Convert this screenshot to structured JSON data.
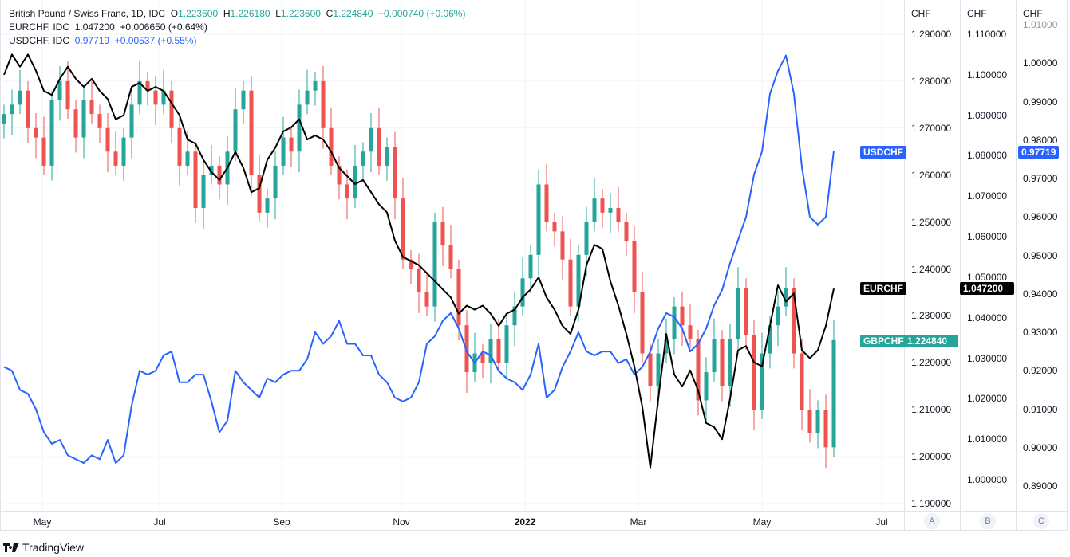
{
  "legend": {
    "main": {
      "title": "British Pound / Swiss Franc, 1D, IDC",
      "o_label": "O",
      "o": "1.223600",
      "h_label": "H",
      "h": "1.226180",
      "l_label": "L",
      "l": "1.223600",
      "c_label": "C",
      "c": "1.224840",
      "change": "+0.000740 (+0.06%)"
    },
    "eurchf": {
      "title": "EURCHF, IDC",
      "value": "1.047200",
      "change": "+0.006650 (+0.64%)"
    },
    "usdchf": {
      "title": "USDCHF, IDC",
      "value": "0.97719",
      "change": "+0.00537 (+0.55%)"
    }
  },
  "axes": {
    "A": {
      "unit": "CHF",
      "button": "A",
      "ticks": [
        "1.290000",
        "1.280000",
        "1.270000",
        "1.260000",
        "1.250000",
        "1.240000",
        "1.230000",
        "1.220000",
        "1.210000",
        "1.200000",
        "1.190000"
      ]
    },
    "B": {
      "unit": "CHF",
      "button": "B",
      "ticks": [
        "1.110000",
        "1.100000",
        "1.090000",
        "1.080000",
        "1.070000",
        "1.060000",
        "1.050000",
        "1.040000",
        "1.030000",
        "1.020000",
        "1.010000",
        "1.000000"
      ]
    },
    "C": {
      "unit": "CHF",
      "button": "C",
      "ticks": [
        "1.01000",
        "1.00000",
        "0.99000",
        "0.98000",
        "0.97000",
        "0.96000",
        "0.95000",
        "0.94000",
        "0.93000",
        "0.92000",
        "0.91000",
        "0.90000",
        "0.89000"
      ]
    }
  },
  "tags": {
    "usdchf": {
      "name": "USDCHF",
      "value": "0.97719"
    },
    "eurchf": {
      "name": "EURCHF",
      "value": "1.047200"
    },
    "gbpchf": {
      "name": "GBPCHF",
      "value": "1.224840"
    }
  },
  "time_labels": [
    "May",
    "Jul",
    "Sep",
    "Nov",
    "2022",
    "Mar",
    "May",
    "Jul"
  ],
  "brand": "TradingView",
  "colors": {
    "up": "#26a69a",
    "down": "#ef5350",
    "usdchf": "#2962ff",
    "eurchf": "#000000",
    "grid": "#f0f3fa"
  },
  "chart_data": {
    "type": "line",
    "title": "British Pound / Swiss Franc, 1D, IDC",
    "x_range": [
      "2021-04",
      "2022-06"
    ],
    "series": [
      {
        "name": "GBPCHF",
        "type": "candlestick",
        "scale": "A",
        "ylim": [
          1.19,
          1.29
        ],
        "closes": [
          1.273,
          1.275,
          1.278,
          1.27,
          1.268,
          1.262,
          1.276,
          1.28,
          1.274,
          1.268,
          1.276,
          1.273,
          1.27,
          1.265,
          1.262,
          1.268,
          1.275,
          1.28,
          1.278,
          1.275,
          1.278,
          1.27,
          1.262,
          1.265,
          1.253,
          1.26,
          1.262,
          1.258,
          1.265,
          1.274,
          1.278,
          1.26,
          1.252,
          1.255,
          1.262,
          1.268,
          1.265,
          1.275,
          1.278,
          1.28,
          1.27,
          1.262,
          1.258,
          1.255,
          1.262,
          1.265,
          1.27,
          1.262,
          1.266,
          1.255,
          1.242,
          1.24,
          1.235,
          1.232,
          1.25,
          1.245,
          1.24,
          1.228,
          1.218,
          1.222,
          1.22,
          1.225,
          1.22,
          1.228,
          1.232,
          1.238,
          1.243,
          1.258,
          1.25,
          1.248,
          1.242,
          1.232,
          1.243,
          1.25,
          1.255,
          1.252,
          1.253,
          1.25,
          1.246,
          1.235,
          1.222,
          1.215,
          1.222,
          1.225,
          1.232,
          1.228,
          1.225,
          1.212,
          1.218,
          1.225,
          1.215,
          1.225,
          1.236,
          1.226,
          1.21,
          1.222,
          1.228,
          1.232,
          1.236,
          1.222,
          1.21,
          1.205,
          1.21,
          1.202,
          1.22484
        ]
      },
      {
        "name": "EURCHF",
        "type": "line",
        "scale": "B",
        "ylim": [
          0.998,
          1.113
        ],
        "values": [
          1.1,
          1.105,
          1.102,
          1.105,
          1.101,
          1.096,
          1.095,
          1.099,
          1.102,
          1.099,
          1.097,
          1.099,
          1.096,
          1.094,
          1.089,
          1.09,
          1.097,
          1.098,
          1.096,
          1.097,
          1.096,
          1.093,
          1.09,
          1.084,
          1.083,
          1.079,
          1.076,
          1.074,
          1.077,
          1.081,
          1.077,
          1.071,
          1.072,
          1.079,
          1.082,
          1.086,
          1.087,
          1.089,
          1.084,
          1.085,
          1.084,
          1.081,
          1.077,
          1.075,
          1.073,
          1.074,
          1.071,
          1.068,
          1.066,
          1.059,
          1.055,
          1.054,
          1.053,
          1.051,
          1.049,
          1.047,
          1.045,
          1.041,
          1.043,
          1.042,
          1.043,
          1.041,
          1.038,
          1.041,
          1.042,
          1.045,
          1.047,
          1.05,
          1.045,
          1.042,
          1.038,
          1.036,
          1.042,
          1.053,
          1.058,
          1.057,
          1.049,
          1.043,
          1.036,
          1.028,
          1.018,
          1.003,
          1.02,
          1.036,
          1.026,
          1.023,
          1.027,
          1.022,
          1.014,
          1.013,
          1.01,
          1.02,
          1.032,
          1.033,
          1.029,
          1.028,
          1.038,
          1.048,
          1.044,
          1.046,
          1.032,
          1.03,
          1.032,
          1.038,
          1.0472
        ]
      },
      {
        "name": "USDCHF",
        "type": "line",
        "scale": "C",
        "ylim": [
          0.887,
          1.012
        ],
        "values": [
          0.921,
          0.92,
          0.915,
          0.914,
          0.91,
          0.904,
          0.901,
          0.902,
          0.898,
          0.897,
          0.896,
          0.898,
          0.897,
          0.902,
          0.896,
          0.898,
          0.911,
          0.92,
          0.919,
          0.92,
          0.924,
          0.925,
          0.917,
          0.917,
          0.919,
          0.919,
          0.912,
          0.904,
          0.907,
          0.92,
          0.917,
          0.915,
          0.913,
          0.918,
          0.917,
          0.919,
          0.92,
          0.92,
          0.923,
          0.93,
          0.927,
          0.929,
          0.933,
          0.927,
          0.927,
          0.924,
          0.924,
          0.919,
          0.917,
          0.913,
          0.912,
          0.913,
          0.917,
          0.927,
          0.929,
          0.933,
          0.935,
          0.931,
          0.925,
          0.922,
          0.925,
          0.924,
          0.92,
          0.918,
          0.917,
          0.915,
          0.919,
          0.927,
          0.913,
          0.915,
          0.921,
          0.925,
          0.93,
          0.925,
          0.924,
          0.925,
          0.925,
          0.922,
          0.923,
          0.919,
          0.921,
          0.925,
          0.931,
          0.935,
          0.934,
          0.931,
          0.925,
          0.927,
          0.931,
          0.937,
          0.941,
          0.948,
          0.954,
          0.96,
          0.971,
          0.977,
          0.992,
          0.998,
          1.002,
          0.992,
          0.973,
          0.96,
          0.958,
          0.96,
          0.97719
        ]
      }
    ]
  }
}
